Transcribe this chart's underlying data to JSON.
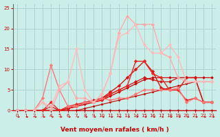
{
  "background_color": "#cceee8",
  "grid_color": "#aacccc",
  "xlim": [
    -0.5,
    23.5
  ],
  "ylim": [
    0,
    26
  ],
  "xticks": [
    0,
    1,
    2,
    3,
    4,
    5,
    6,
    7,
    8,
    9,
    10,
    11,
    12,
    13,
    14,
    15,
    16,
    17,
    18,
    19,
    20,
    21,
    22,
    23
  ],
  "yticks": [
    0,
    5,
    10,
    15,
    20,
    25
  ],
  "xlabel": "Vent moyen/en rafales ( km/h )",
  "xlabel_color": "#cc0000",
  "tick_color": "#cc0000",
  "left_spine_color": "#666666",
  "bottom_spine_color": "#cc0000",
  "series": [
    {
      "x": [
        0,
        1,
        2,
        3,
        4,
        5,
        6,
        7,
        8,
        9,
        10,
        11,
        12,
        13,
        14,
        15,
        16,
        17,
        18,
        19,
        20,
        21,
        22,
        23
      ],
      "y": [
        0,
        0,
        0,
        0,
        0,
        0,
        0,
        0,
        0,
        0,
        0,
        0,
        0,
        0,
        0,
        0,
        0,
        0,
        0,
        0,
        0,
        0,
        0,
        0
      ],
      "color": "#aa0000",
      "linewidth": 0.8,
      "marker": "D",
      "markersize": 1.5
    },
    {
      "x": [
        0,
        1,
        2,
        3,
        4,
        5,
        6,
        7,
        8,
        9,
        10,
        11,
        12,
        13,
        14,
        15,
        16,
        17,
        18,
        19,
        20,
        21,
        22,
        23
      ],
      "y": [
        0,
        0,
        0,
        0,
        0,
        0,
        0,
        0,
        0.5,
        1,
        1.5,
        2,
        2.5,
        3,
        3.5,
        4,
        4.5,
        5,
        5.5,
        6,
        6.5,
        7,
        7,
        7
      ],
      "color": "#bb0000",
      "linewidth": 0.8,
      "marker": "D",
      "markersize": 1.5
    },
    {
      "x": [
        0,
        1,
        2,
        3,
        4,
        5,
        6,
        7,
        8,
        9,
        10,
        11,
        12,
        13,
        14,
        15,
        16,
        17,
        18,
        19,
        20,
        21,
        22,
        23
      ],
      "y": [
        0,
        0,
        0,
        0,
        0,
        0,
        0.5,
        1,
        1.5,
        2,
        2.5,
        3.5,
        4.5,
        5.5,
        6.5,
        7.5,
        8,
        8,
        8,
        8,
        8,
        8,
        8,
        8
      ],
      "color": "#cc0000",
      "linewidth": 0.9,
      "marker": "D",
      "markersize": 1.8
    },
    {
      "x": [
        0,
        1,
        2,
        3,
        4,
        5,
        6,
        7,
        8,
        9,
        10,
        11,
        12,
        13,
        14,
        15,
        16,
        17,
        18,
        19,
        20,
        21,
        22,
        23
      ],
      "y": [
        0,
        0,
        0,
        0,
        0,
        0,
        0.5,
        1,
        2,
        2.5,
        3,
        4,
        5,
        6,
        7,
        8,
        7.5,
        7,
        7,
        8,
        8,
        8,
        2,
        2
      ],
      "color": "#cc1111",
      "linewidth": 0.9,
      "marker": "D",
      "markersize": 2
    },
    {
      "x": [
        0,
        1,
        2,
        3,
        4,
        5,
        6,
        7,
        8,
        9,
        10,
        11,
        12,
        13,
        14,
        15,
        16,
        17,
        18,
        19,
        20,
        21,
        22,
        23
      ],
      "y": [
        0,
        0,
        0,
        0,
        1,
        0,
        0.5,
        1,
        2,
        2,
        3,
        4.5,
        6,
        8,
        10,
        12,
        9.5,
        5.5,
        5,
        5,
        8,
        8,
        2,
        2
      ],
      "color": "#dd1111",
      "linewidth": 1.0,
      "marker": "D",
      "markersize": 2.2
    },
    {
      "x": [
        0,
        1,
        2,
        3,
        4,
        5,
        6,
        7,
        8,
        9,
        10,
        11,
        12,
        13,
        14,
        15,
        16,
        17,
        18,
        19,
        20,
        21,
        22,
        23
      ],
      "y": [
        0,
        0,
        0,
        0,
        2,
        0,
        1,
        1.5,
        2,
        2,
        2.5,
        4,
        5,
        6,
        12,
        12,
        9,
        8,
        5,
        5,
        2.5,
        3,
        2,
        2
      ],
      "color": "#ee2222",
      "linewidth": 1.0,
      "marker": "D",
      "markersize": 2.2
    },
    {
      "x": [
        0,
        1,
        2,
        3,
        4,
        5,
        6,
        7,
        8,
        9,
        10,
        11,
        12,
        13,
        14,
        15,
        16,
        17,
        18,
        19,
        20,
        21,
        22,
        23
      ],
      "y": [
        0,
        0,
        0,
        3,
        11,
        5,
        1,
        1,
        2,
        2,
        3,
        2.5,
        3,
        3,
        4,
        5,
        5,
        5,
        5,
        5.5,
        2,
        3,
        2,
        2
      ],
      "color": "#ff7777",
      "linewidth": 1.0,
      "marker": "D",
      "markersize": 2.2
    },
    {
      "x": [
        0,
        1,
        2,
        3,
        4,
        5,
        6,
        7,
        8,
        9,
        10,
        11,
        12,
        13,
        14,
        15,
        16,
        17,
        18,
        19,
        20,
        21,
        22,
        23
      ],
      "y": [
        0,
        0,
        0,
        2,
        0,
        5,
        7,
        3,
        3,
        2,
        4,
        9,
        19,
        23,
        21,
        21,
        21,
        14,
        13,
        8,
        7,
        7,
        7,
        7
      ],
      "color": "#ffaaaa",
      "linewidth": 1.0,
      "marker": "D",
      "markersize": 2.2
    },
    {
      "x": [
        0,
        1,
        2,
        3,
        4,
        5,
        6,
        7,
        8,
        9,
        10,
        11,
        12,
        13,
        14,
        15,
        16,
        17,
        18,
        19,
        20,
        21,
        22,
        23
      ],
      "y": [
        0,
        0,
        0,
        2,
        1,
        6,
        7,
        15,
        5,
        2,
        4,
        9,
        18,
        19,
        21,
        16,
        14,
        14,
        16,
        13,
        7,
        7,
        7,
        7
      ],
      "color": "#ffbbbb",
      "linewidth": 1.0,
      "marker": "P",
      "markersize": 2.5
    }
  ]
}
